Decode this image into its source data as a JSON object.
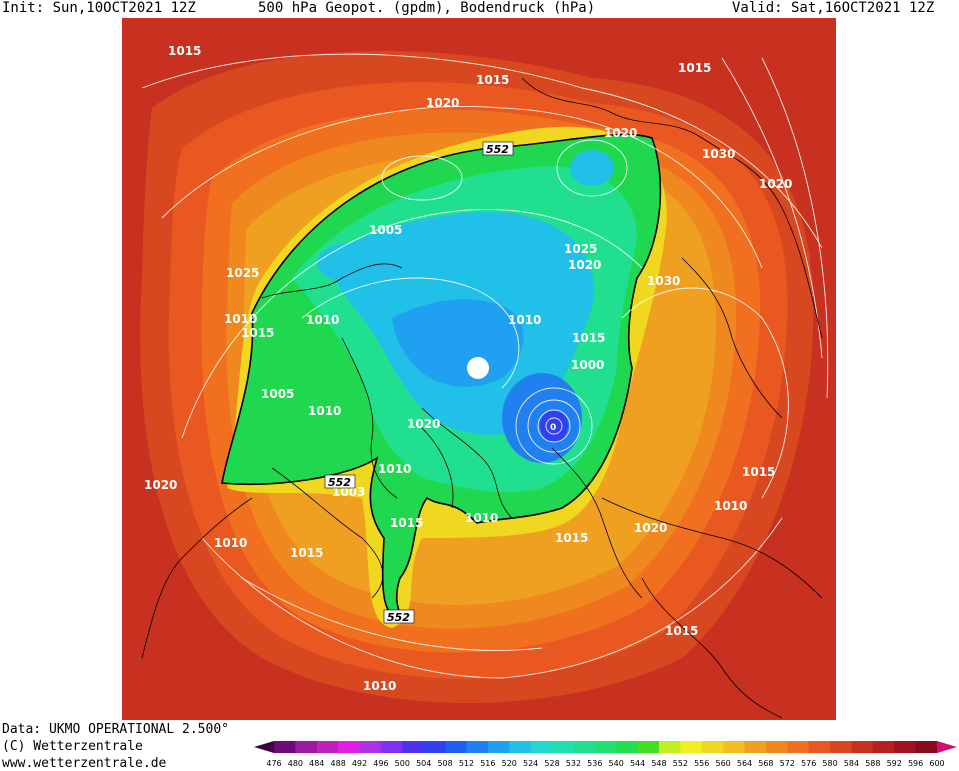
{
  "header": {
    "init": "Init: Sun,10OCT2021 12Z",
    "title": "500 hPa Geopot. (gpdm), Bodendruck (hPa)",
    "valid": "Valid: Sat,16OCT2021 12Z"
  },
  "footer": {
    "data_source": "Data: UKMO OPERATIONAL 2.500°",
    "copyright": "(C) Wetterzentrale",
    "website": "www.wetterzentrale.de"
  },
  "map": {
    "isobar_labels": [
      "1015",
      "1015",
      "1020",
      "1015",
      "1020",
      "1030",
      "1020",
      "1005",
      "1025",
      "1025",
      "1020",
      "1030",
      "1010",
      "1015",
      "1010",
      "1010",
      "1000",
      "1005",
      "1010",
      "1020",
      "1010",
      "1003",
      "1020",
      "1015",
      "1010",
      "1015",
      "1010",
      "1010",
      "1015",
      "1015",
      "1015",
      "1020",
      "1015",
      "1010"
    ],
    "height_labels": [
      "552",
      "552",
      "552"
    ],
    "low_center_label": "0"
  },
  "colors": {
    "background": "#ffffff",
    "isobar_line": "#ffffff",
    "geopot_552_contour": "#000000"
  },
  "legend": {
    "scale_values": [
      "476",
      "480",
      "484",
      "488",
      "492",
      "496",
      "500",
      "504",
      "508",
      "512",
      "516",
      "520",
      "524",
      "528",
      "532",
      "536",
      "540",
      "544",
      "548",
      "552",
      "556",
      "560",
      "564",
      "568",
      "572",
      "576",
      "580",
      "584",
      "588",
      "592",
      "596",
      "600"
    ],
    "scale_colors": [
      "#3a0040",
      "#6e0a7a",
      "#9a1aa0",
      "#c020c0",
      "#e020e8",
      "#b030e8",
      "#8030f0",
      "#5030f0",
      "#3040f0",
      "#2060f0",
      "#2080f0",
      "#20a0f0",
      "#20c0e8",
      "#20d8d0",
      "#20e0b0",
      "#20e090",
      "#20e070",
      "#20e050",
      "#40e020",
      "#c0f020",
      "#f0f020",
      "#f0d820",
      "#f0c020",
      "#f0a020",
      "#f08820",
      "#f07020",
      "#e85820",
      "#d84820",
      "#c83020",
      "#b82020",
      "#a01020",
      "#880820",
      "#d01070"
    ]
  }
}
